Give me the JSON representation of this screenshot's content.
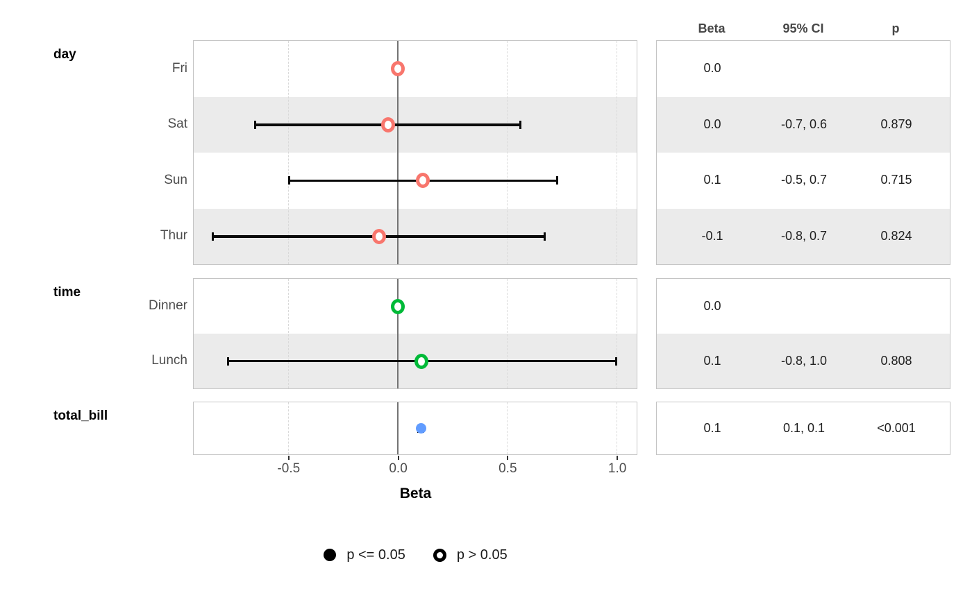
{
  "chart_data": {
    "type": "forest",
    "xlabel": "Beta",
    "xlim": [
      -0.932,
      1.09
    ],
    "x_ticks": [
      -0.5,
      0.0,
      0.5,
      1.0
    ],
    "x_tick_labels": [
      "-0.5",
      "0.0",
      "0.5",
      "1.0"
    ],
    "grid_dashed": [
      -0.5,
      0.5,
      1.0
    ],
    "zero_line": 0.0,
    "grid_on": true,
    "legend_position": "bottom",
    "table_headers": [
      "Beta",
      "95% CI",
      "p"
    ],
    "groups": [
      {
        "label": "day",
        "color": "#F8766D",
        "rows": [
          {
            "label": "Fri",
            "beta": 0.0,
            "ci_low": null,
            "ci_high": null,
            "filled": false,
            "shaded": false,
            "cells": [
              "0.0",
              "",
              ""
            ]
          },
          {
            "label": "Sat",
            "beta": -0.046,
            "ci_low": -0.65,
            "ci_high": 0.56,
            "filled": false,
            "shaded": true,
            "cells": [
              "0.0",
              "-0.7, 0.6",
              "0.879"
            ]
          },
          {
            "label": "Sun",
            "beta": 0.115,
            "ci_low": -0.497,
            "ci_high": 0.727,
            "filled": false,
            "shaded": false,
            "cells": [
              "0.1",
              "-0.5, 0.7",
              "0.715"
            ]
          },
          {
            "label": "Thur",
            "beta": -0.086,
            "ci_low": -0.845,
            "ci_high": 0.67,
            "filled": false,
            "shaded": true,
            "cells": [
              "-0.1",
              "-0.8, 0.7",
              "0.824"
            ]
          }
        ]
      },
      {
        "label": "time",
        "color": "#00BA38",
        "rows": [
          {
            "label": "Dinner",
            "beta": 0.0,
            "ci_low": null,
            "ci_high": null,
            "filled": false,
            "shaded": false,
            "cells": [
              "0.0",
              "",
              ""
            ]
          },
          {
            "label": "Lunch",
            "beta": 0.109,
            "ci_low": -0.775,
            "ci_high": 0.995,
            "filled": false,
            "shaded": true,
            "cells": [
              "0.1",
              "-0.8, 1.0",
              "0.808"
            ]
          }
        ]
      },
      {
        "label": "total_bill",
        "color": "#619CFF",
        "rows": [
          {
            "label": "",
            "beta": 0.105,
            "ci_low": 0.094,
            "ci_high": 0.116,
            "filled": true,
            "shaded": false,
            "cells": [
              "0.1",
              "0.1, 0.1",
              "<0.001"
            ]
          }
        ]
      }
    ],
    "legend": [
      {
        "marker": "filled",
        "label": "p <= 0.05"
      },
      {
        "marker": "open",
        "label": "p > 0.05"
      }
    ]
  }
}
